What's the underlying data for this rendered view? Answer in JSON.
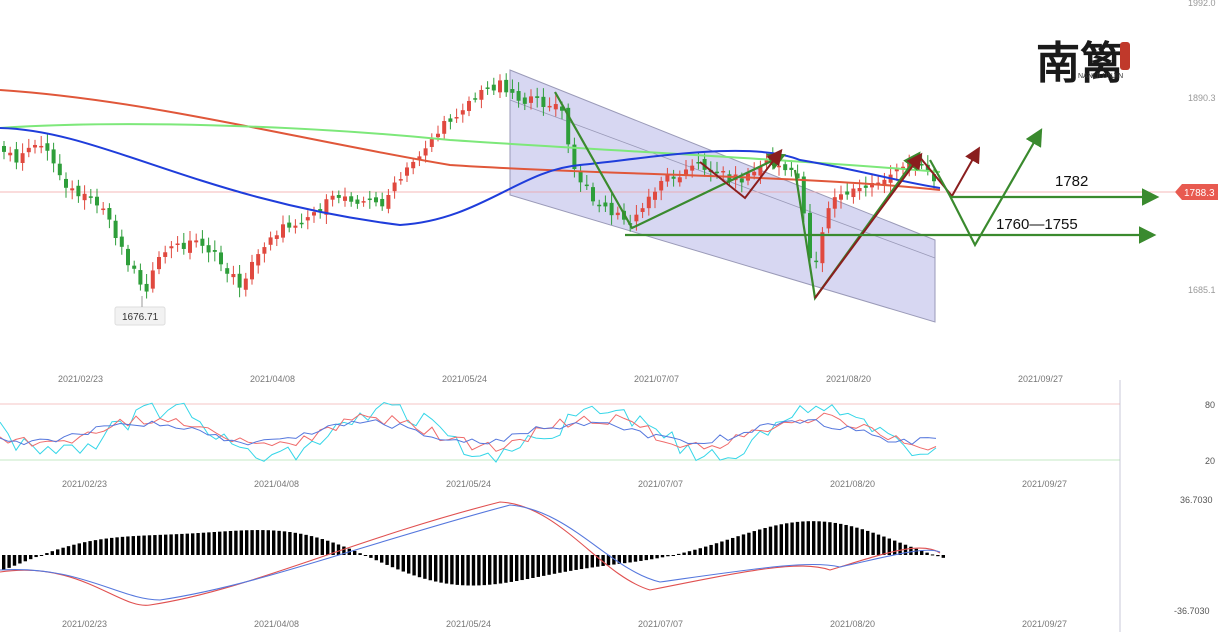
{
  "chart_data": {
    "type": "candlestick",
    "main": {
      "price_axis_labels": [
        "1992.0",
        "1890.3",
        "1685.1"
      ],
      "current_price": "1788.3",
      "low_callout": "1676.71",
      "annotations": [
        "1782",
        "1760—1755"
      ],
      "date_labels": [
        "2021/02/23",
        "2021/04/08",
        "2021/05/24",
        "2021/07/07",
        "2021/08/20",
        "2021/09/27"
      ]
    },
    "oscillator": {
      "levels": [
        "80",
        "20"
      ],
      "date_labels": [
        "2021/02/23",
        "2021/04/08",
        "2021/05/24",
        "2021/07/07",
        "2021/08/20",
        "2021/09/27"
      ]
    },
    "macd": {
      "levels": [
        "36.7030",
        "-36.7030"
      ],
      "date_labels": [
        "2021/02/23",
        "2021/04/08",
        "2021/05/24",
        "2021/07/07",
        "2021/08/20",
        "2021/09/27"
      ]
    },
    "colors": {
      "up": "#e0493f",
      "down": "#2e9e3a",
      "ma_blue": "#1f3ddb",
      "ma_red": "#e0573a",
      "ma_green": "#7de87a",
      "channel": "#c9c9ee",
      "arrow_green": "#3a8a2e",
      "arrow_red": "#8a1e1e"
    }
  },
  "logo": {
    "chinese": "南篱",
    "latin": "NANLILUNJIN"
  }
}
